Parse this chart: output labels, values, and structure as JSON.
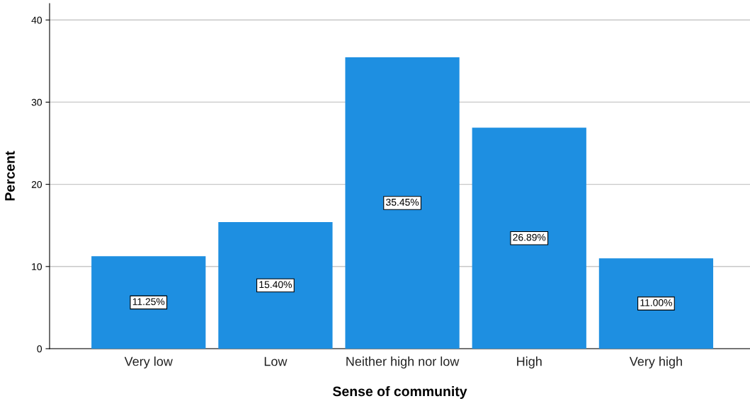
{
  "chart_data": {
    "type": "bar",
    "xlabel": "Sense of community",
    "ylabel": "Percent",
    "categories": [
      "Very low",
      "Low",
      "Neither high nor low",
      "High",
      "Very high"
    ],
    "values": [
      11.25,
      15.4,
      35.45,
      26.89,
      11.0
    ],
    "value_labels": [
      "11.25%",
      "15.40%",
      "35.45%",
      "26.89%",
      "11.00%"
    ],
    "color": "#1e8fe1",
    "ylim": [
      0,
      42
    ],
    "yticks": [
      0,
      10,
      20,
      30,
      40
    ],
    "grid": "y"
  }
}
